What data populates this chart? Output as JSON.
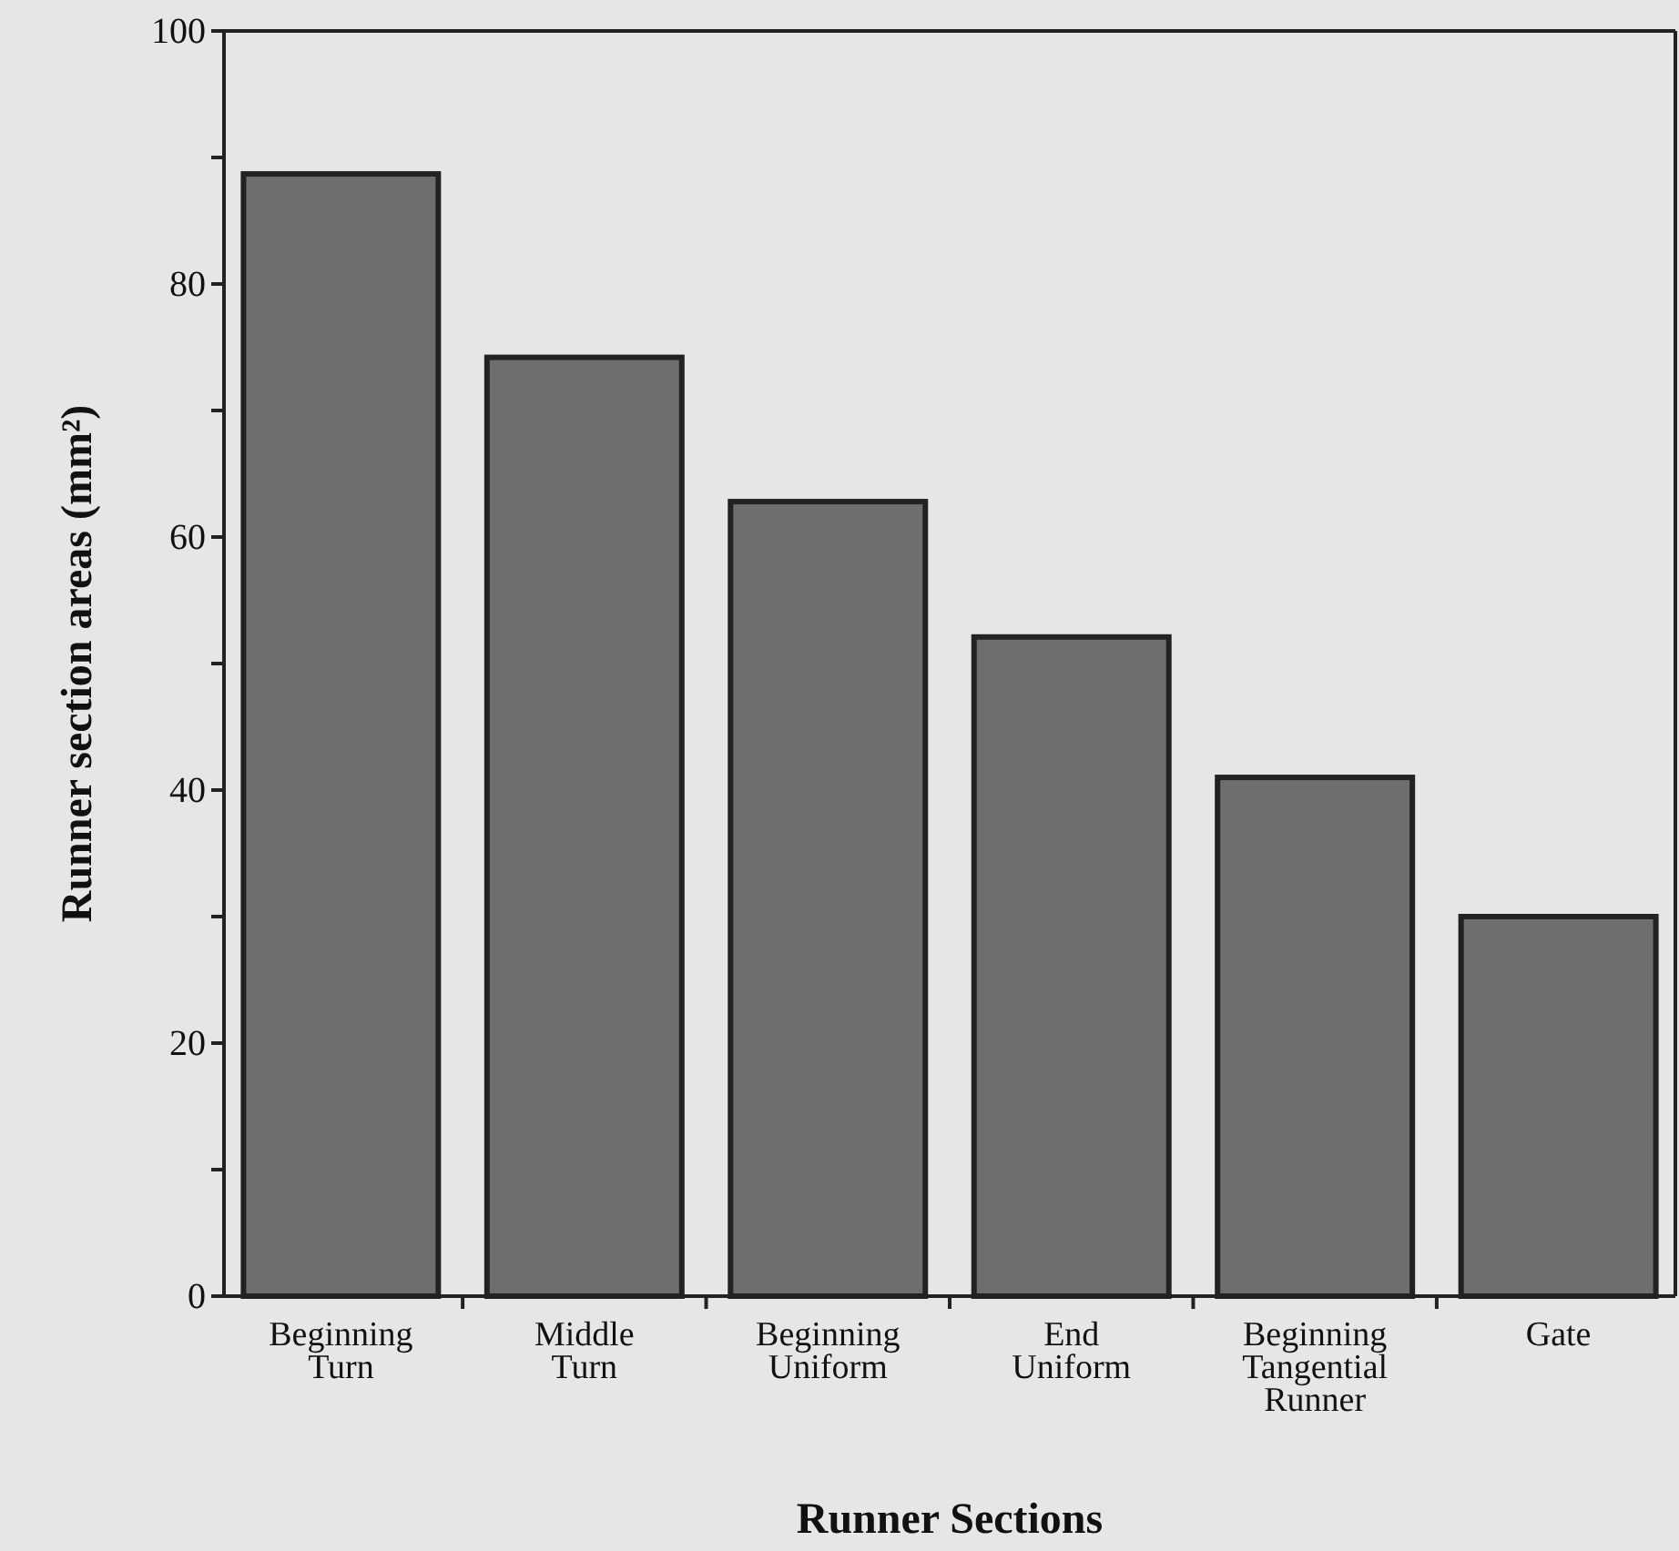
{
  "chart_data": {
    "type": "bar",
    "xlabel": "Runner Sections",
    "ylabel": "Runner section areas  (mm²)",
    "categories": [
      "Beginning\nTurn",
      "Middle\nTurn",
      "Beginning\nUniform",
      "End\nUniform",
      "Beginning\nTangential\nRunner",
      "Gate"
    ],
    "values": [
      88.7,
      74.2,
      62.8,
      52.1,
      41.0,
      30.0
    ],
    "color": "#6e6e6e",
    "ylim": [
      0,
      100
    ],
    "yticks": [
      0,
      {
        "value": 10,
        "label": null
      },
      20,
      {
        "value": 30,
        "label": null
      },
      40,
      {
        "value": 50,
        "label": null
      },
      60,
      {
        "value": 70,
        "label": null
      },
      80,
      {
        "value": 90,
        "label": null
      },
      100
    ],
    "grid": false
  }
}
